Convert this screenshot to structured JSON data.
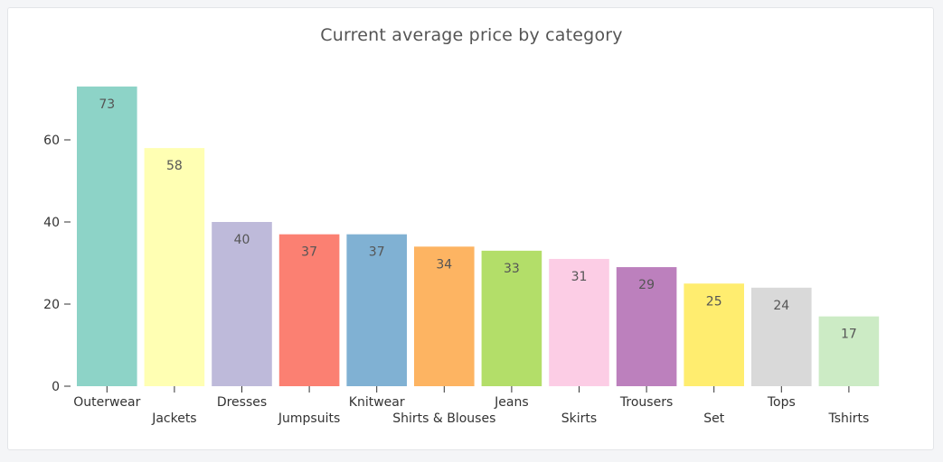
{
  "chart_data": {
    "type": "bar",
    "title": "Current average price by category",
    "xlabel": "",
    "ylabel": "",
    "categories": [
      "Outerwear",
      "Jackets",
      "Dresses",
      "Jumpsuits",
      "Knitwear",
      "Shirts & Blouses",
      "Jeans",
      "Skirts",
      "Trousers",
      "Set",
      "Tops",
      "Tshirts"
    ],
    "values": [
      73,
      58,
      40,
      37,
      37,
      34,
      33,
      31,
      29,
      25,
      24,
      17
    ],
    "value_labels": [
      "73",
      "58",
      "40",
      "37",
      "37",
      "34",
      "33",
      "31",
      "29",
      "25",
      "24",
      "17"
    ],
    "colors": [
      "#8dd3c7",
      "#ffffb3",
      "#bebada",
      "#fb8072",
      "#80b1d3",
      "#fdb462",
      "#b3de69",
      "#fccde5",
      "#bc80bd",
      "#ffed6f",
      "#d9d9d9",
      "#ccebc5"
    ],
    "yticks": [
      0,
      20,
      40,
      60
    ],
    "ylim": [
      0,
      80
    ],
    "grid": false,
    "legend": "none"
  }
}
